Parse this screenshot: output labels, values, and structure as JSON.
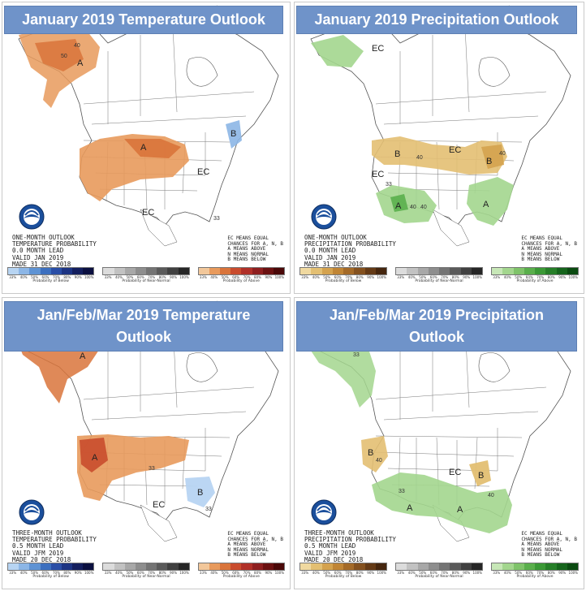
{
  "panels": [
    {
      "title": "January 2019 Temperature Outlook",
      "meta": [
        "ONE-MONTH OUTLOOK",
        "TEMPERATURE PROBABILITY",
        "0.0 MONTH LEAD",
        "VALID JAN 2019",
        "MADE 31 DEC 2018"
      ],
      "labels": {
        "a1": "A",
        "a2": "A",
        "b1": "B",
        "ec1": "EC",
        "ec2": "EC",
        "c1": "40",
        "c2": "50",
        "c3": "33"
      }
    },
    {
      "title": "January 2019 Precipitation Outlook",
      "meta": [
        "ONE-MONTH OUTLOOK",
        "PRECIPITATION PROBABILITY",
        "0.0 MONTH LEAD",
        "VALID JAN 2019",
        "MADE 31 DEC 2018"
      ],
      "labels": {
        "ec0": "EC",
        "ec1": "EC",
        "ec2": "EC",
        "b1": "B",
        "b2": "B",
        "a1": "A",
        "a2": "A",
        "c1": "40",
        "c2": "40",
        "c3": "33",
        "c4": "40",
        "c5": "40"
      }
    },
    {
      "title": "Jan/Feb/Mar 2019 Temperature Outlook",
      "meta": [
        "THREE-MONTH OUTLOOK",
        "TEMPERATURE PROBABILITY",
        "0.5 MONTH LEAD",
        "VALID JFM 2019",
        "MADE 20 DEC 2018"
      ],
      "labels": {
        "a1": "A",
        "a2": "A",
        "b1": "B",
        "ec1": "EC",
        "c1": "33",
        "c2": "33"
      }
    },
    {
      "title": "Jan/Feb/Mar 2019 Precipitation Outlook",
      "meta": [
        "THREE-MONTH OUTLOOK",
        "PRECIPITATION PROBABILITY",
        "0.5 MONTH LEAD",
        "VALID JFM 2019",
        "MADE 20 DEC 2018"
      ],
      "labels": {
        "c0": "33",
        "b1": "B",
        "b2": "B",
        "a1": "A",
        "a2": "A",
        "ec1": "EC",
        "c1": "40",
        "c2": "33",
        "c3": "40"
      }
    }
  ],
  "ec_legend": [
    "EC MEANS EQUAL",
    "CHANCES FOR A, N, B",
    "A MEANS ABOVE",
    "N MEANS NORMAL",
    "B MEANS BELOW"
  ],
  "scale_ticks": [
    "33%",
    "40%",
    "50%",
    "60%",
    "70%",
    "80%",
    "90%",
    "100%"
  ],
  "scale_captions": {
    "temp_below": "Probability of Below",
    "near": "Probability of Near-Normal",
    "temp_above": "Probability of Above"
  },
  "colors": {
    "title_bg": "#6f93c9",
    "above_temp": [
      "#f2c79a",
      "#e89a5c",
      "#d9743b",
      "#c94c2e",
      "#b03028",
      "#8e1f1f",
      "#6b1111",
      "#4a0808"
    ],
    "below_temp": [
      "#b7d4f2",
      "#8cb6e6",
      "#5e93d4",
      "#3c6fbf",
      "#2a4ea6",
      "#1d3483",
      "#141f5e",
      "#0b1040"
    ],
    "near": [
      "#dcdcdc",
      "#c2c2c2",
      "#a8a8a8",
      "#8e8e8e",
      "#747474",
      "#5a5a5a",
      "#404040",
      "#262626"
    ],
    "above_precip": [
      "#c7e7b7",
      "#a3d68e",
      "#7fc36a",
      "#5aaf4c",
      "#3b9936",
      "#267f28",
      "#16651c",
      "#0b4b11"
    ],
    "below_precip": [
      "#f0d9a0",
      "#e3bf72",
      "#d4a24e",
      "#c08535",
      "#a46a28",
      "#84511f",
      "#643a16",
      "#45260e"
    ]
  }
}
